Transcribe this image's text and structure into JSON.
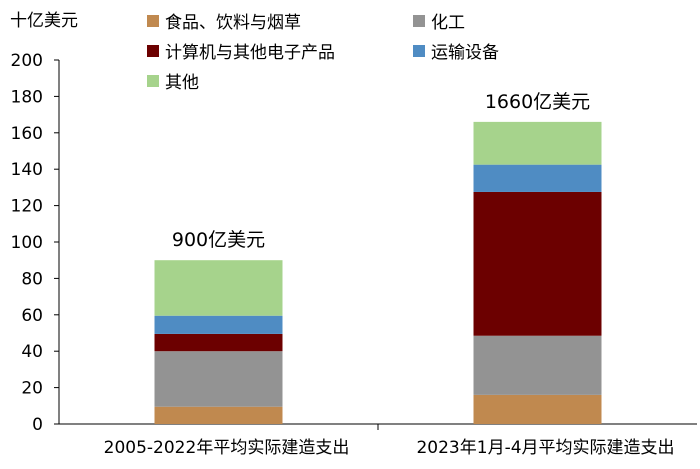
{
  "chart_data": {
    "type": "bar",
    "stacked": true,
    "ylabel": "十亿美元",
    "ylim": [
      0,
      200
    ],
    "yticks": [
      0,
      20,
      40,
      60,
      80,
      100,
      120,
      140,
      160,
      180,
      200
    ],
    "categories": [
      "2005-2022年平均实际建造支出",
      "2023年1月-4月平均实际建造支出"
    ],
    "totals_labels": [
      "900亿美元",
      "1660亿美元"
    ],
    "series": [
      {
        "name": "食品、饮料与烟草",
        "color": "#C0894F",
        "values": [
          9.5,
          16
        ]
      },
      {
        "name": "化工",
        "color": "#939393",
        "values": [
          30.5,
          32.5
        ]
      },
      {
        "name": "计算机与其他电子产品",
        "color": "#6C0000",
        "values": [
          9.5,
          79
        ]
      },
      {
        "name": "运输设备",
        "color": "#4F8CC3",
        "values": [
          10,
          15
        ]
      },
      {
        "name": "其他",
        "color": "#A6D38C",
        "values": [
          30.5,
          23.5
        ]
      }
    ],
    "legend_order": [
      0,
      1,
      2,
      3,
      4
    ],
    "legend_placement": "top"
  }
}
